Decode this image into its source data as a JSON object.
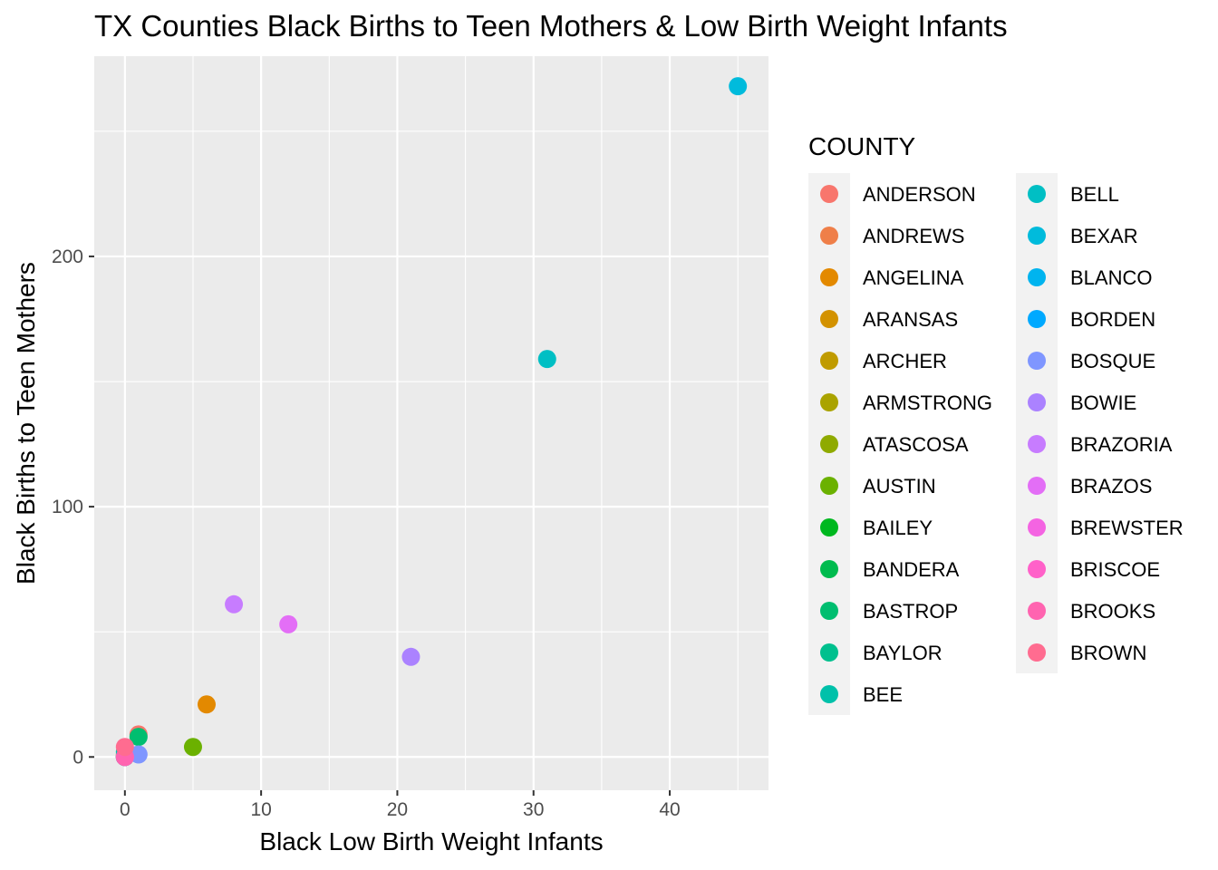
{
  "chart_data": {
    "type": "scatter",
    "title": "TX Counties Black Births to Teen Mothers & Low Birth Weight Infants",
    "xlabel": "Black Low Birth Weight Infants",
    "ylabel": "Black Births to Teen Mothers",
    "xlim": [
      -2.25,
      47.25
    ],
    "ylim": [
      -13.3,
      280
    ],
    "x_ticks": [
      0,
      10,
      20,
      30,
      40
    ],
    "y_ticks": [
      0,
      100,
      200
    ],
    "x_tick_labels": [
      "0",
      "10",
      "20",
      "30",
      "40"
    ],
    "y_tick_labels": [
      "0",
      "100",
      "200"
    ],
    "grid": true,
    "legend_title": "COUNTY",
    "legend_position": "right",
    "series": [
      {
        "name": "ANDERSON",
        "color": "#F8766D",
        "x": 1,
        "y": 9
      },
      {
        "name": "ANDREWS",
        "color": "#EF7F49",
        "x": 0,
        "y": 0
      },
      {
        "name": "ANGELINA",
        "color": "#E38900",
        "x": 6,
        "y": 21
      },
      {
        "name": "ARANSAS",
        "color": "#D39200",
        "x": 0,
        "y": 0
      },
      {
        "name": "ARCHER",
        "color": "#C09B00",
        "x": 0,
        "y": 0
      },
      {
        "name": "ARMSTRONG",
        "color": "#AAA300",
        "x": 0,
        "y": 0
      },
      {
        "name": "ATASCOSA",
        "color": "#8FAA00",
        "x": 0,
        "y": 1
      },
      {
        "name": "AUSTIN",
        "color": "#6BB100",
        "x": 5,
        "y": 4
      },
      {
        "name": "BAILEY",
        "color": "#00B81F",
        "x": 0,
        "y": 0
      },
      {
        "name": "BANDERA",
        "color": "#00BB4E",
        "x": 0,
        "y": 0
      },
      {
        "name": "BASTROP",
        "color": "#00BE70",
        "x": 1,
        "y": 8
      },
      {
        "name": "BAYLOR",
        "color": "#00C08E",
        "x": 0,
        "y": 0
      },
      {
        "name": "BEE",
        "color": "#00C1AA",
        "x": 0,
        "y": 2
      },
      {
        "name": "BELL",
        "color": "#00BFC4",
        "x": 31,
        "y": 159
      },
      {
        "name": "BEXAR",
        "color": "#00BBDC",
        "x": 45,
        "y": 268
      },
      {
        "name": "BLANCO",
        "color": "#00B4EF",
        "x": 0,
        "y": 0
      },
      {
        "name": "BORDEN",
        "color": "#00A9FF",
        "x": 0,
        "y": 0
      },
      {
        "name": "BOSQUE",
        "color": "#7F96FF",
        "x": 1,
        "y": 1
      },
      {
        "name": "BOWIE",
        "color": "#AB82FF",
        "x": 21,
        "y": 40
      },
      {
        "name": "BRAZORIA",
        "color": "#C77CFF",
        "x": 8,
        "y": 61
      },
      {
        "name": "BRAZOS",
        "color": "#E36EF6",
        "x": 12,
        "y": 53
      },
      {
        "name": "BREWSTER",
        "color": "#F464E2",
        "x": 0,
        "y": 0
      },
      {
        "name": "BRISCOE",
        "color": "#FF61C9",
        "x": 0,
        "y": 0
      },
      {
        "name": "BROOKS",
        "color": "#FF64B0",
        "x": 0,
        "y": 0
      },
      {
        "name": "BROWN",
        "color": "#FF6C90",
        "x": 0,
        "y": 4
      }
    ]
  }
}
